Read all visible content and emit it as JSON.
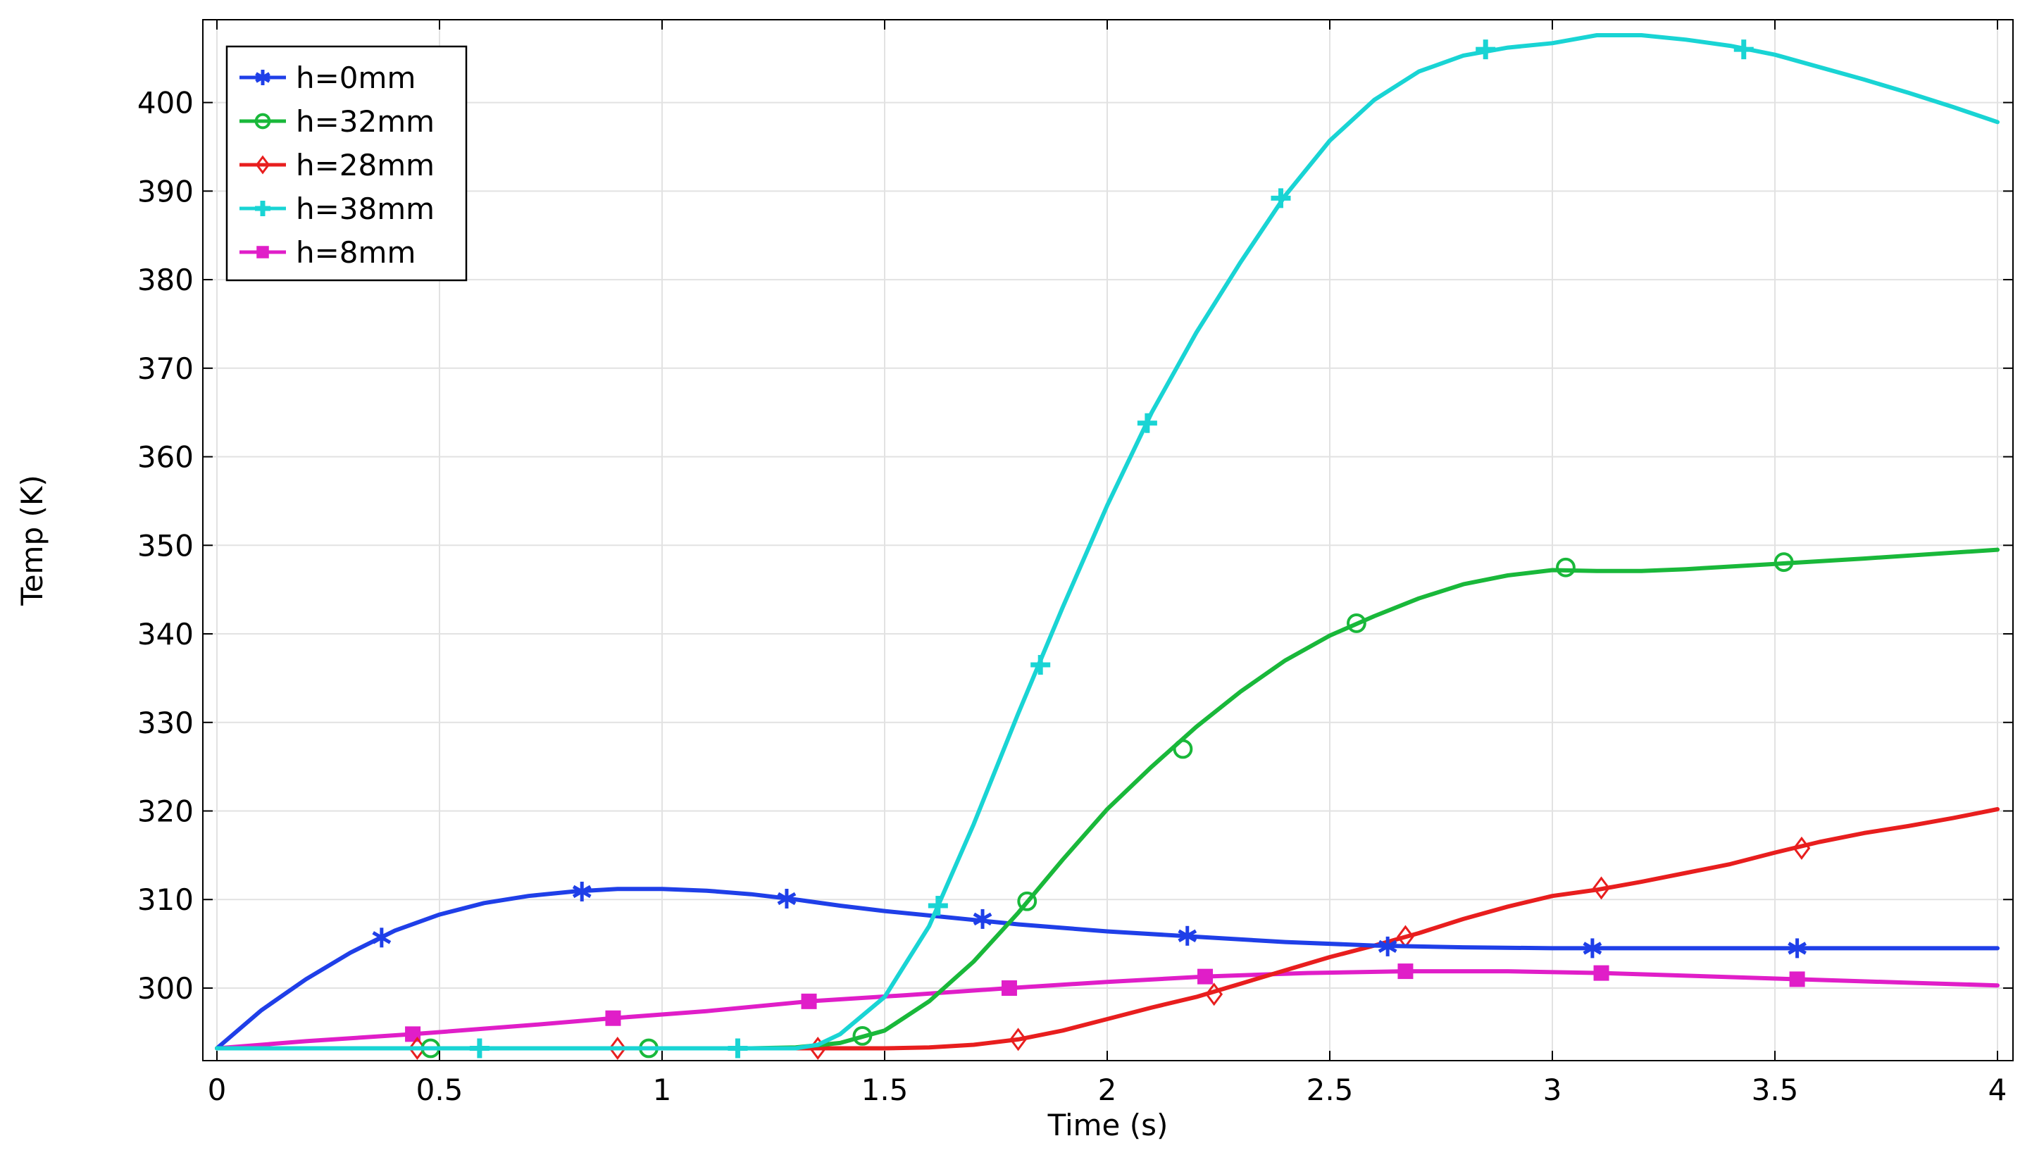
{
  "chart_data": {
    "type": "line",
    "title": "",
    "xlabel": "Time (s)",
    "ylabel": "Temp (K)",
    "xlim": [
      0,
      4
    ],
    "ylim": [
      293,
      408
    ],
    "grid": true,
    "legend_position": "top-left",
    "xticks": [
      0,
      0.5,
      1,
      1.5,
      2,
      2.5,
      3,
      3.5,
      4
    ],
    "xtick_labels": [
      "0",
      "0.5",
      "1",
      "1.5",
      "2",
      "2.5",
      "3",
      "3.5",
      "4"
    ],
    "yticks": [
      300,
      310,
      320,
      330,
      340,
      350,
      360,
      370,
      380,
      390,
      400
    ],
    "ytick_labels": [
      "300",
      "310",
      "320",
      "330",
      "340",
      "350",
      "360",
      "370",
      "380",
      "390",
      "400"
    ],
    "series": [
      {
        "name": "h=0mm",
        "color": "#1f3fe8",
        "marker": "asterisk",
        "points": [
          [
            0,
            293.2
          ],
          [
            0.1,
            297.5
          ],
          [
            0.2,
            301
          ],
          [
            0.3,
            304
          ],
          [
            0.4,
            306.5
          ],
          [
            0.5,
            308.3
          ],
          [
            0.6,
            309.6
          ],
          [
            0.7,
            310.4
          ],
          [
            0.8,
            310.9
          ],
          [
            0.9,
            311.2
          ],
          [
            1.0,
            311.2
          ],
          [
            1.1,
            311
          ],
          [
            1.2,
            310.6
          ],
          [
            1.3,
            310
          ],
          [
            1.4,
            309.3
          ],
          [
            1.5,
            308.7
          ],
          [
            1.6,
            308.2
          ],
          [
            1.7,
            307.7
          ],
          [
            1.8,
            307.2
          ],
          [
            1.9,
            306.8
          ],
          [
            2.0,
            306.4
          ],
          [
            2.2,
            305.8
          ],
          [
            2.4,
            305.2
          ],
          [
            2.6,
            304.8
          ],
          [
            2.8,
            304.6
          ],
          [
            3.0,
            304.5
          ],
          [
            3.2,
            304.5
          ],
          [
            3.5,
            304.5
          ],
          [
            4.0,
            304.5
          ]
        ],
        "markers": [
          [
            0.37,
            305.7
          ],
          [
            0.82,
            310.9
          ],
          [
            1.28,
            310.1
          ],
          [
            1.72,
            307.8
          ],
          [
            2.18,
            305.9
          ],
          [
            2.63,
            304.7
          ],
          [
            3.09,
            304.5
          ],
          [
            3.55,
            304.5
          ]
        ]
      },
      {
        "name": "h=32mm",
        "color": "#19b83a",
        "marker": "circle",
        "points": [
          [
            0,
            293.2
          ],
          [
            1.2,
            293.2
          ],
          [
            1.3,
            293.3
          ],
          [
            1.4,
            293.8
          ],
          [
            1.5,
            295.2
          ],
          [
            1.6,
            298.5
          ],
          [
            1.7,
            303
          ],
          [
            1.8,
            308.5
          ],
          [
            1.9,
            314.5
          ],
          [
            2.0,
            320.2
          ],
          [
            2.1,
            325
          ],
          [
            2.2,
            329.5
          ],
          [
            2.3,
            333.5
          ],
          [
            2.4,
            337
          ],
          [
            2.5,
            339.8
          ],
          [
            2.6,
            342
          ],
          [
            2.7,
            344
          ],
          [
            2.8,
            345.6
          ],
          [
            2.9,
            346.6
          ],
          [
            3.0,
            347.2
          ],
          [
            3.1,
            347.1
          ],
          [
            3.2,
            347.1
          ],
          [
            3.3,
            347.3
          ],
          [
            3.5,
            347.9
          ],
          [
            3.7,
            348.5
          ],
          [
            4.0,
            349.5
          ]
        ],
        "markers": [
          [
            0.48,
            293.2
          ],
          [
            0.97,
            293.2
          ],
          [
            1.45,
            294.6
          ],
          [
            1.82,
            309.8
          ],
          [
            2.17,
            327
          ],
          [
            2.56,
            341.2
          ],
          [
            3.03,
            347.5
          ],
          [
            3.52,
            348.1
          ]
        ]
      },
      {
        "name": "h=28mm",
        "color": "#e81e1e",
        "marker": "diamond",
        "points": [
          [
            0,
            293.2
          ],
          [
            1.3,
            293.2
          ],
          [
            1.5,
            293.2
          ],
          [
            1.6,
            293.3
          ],
          [
            1.7,
            293.6
          ],
          [
            1.8,
            294.2
          ],
          [
            1.9,
            295.2
          ],
          [
            2.0,
            296.5
          ],
          [
            2.1,
            297.8
          ],
          [
            2.2,
            299
          ],
          [
            2.3,
            300.5
          ],
          [
            2.4,
            302
          ],
          [
            2.5,
            303.5
          ],
          [
            2.6,
            304.8
          ],
          [
            2.7,
            306.2
          ],
          [
            2.8,
            307.8
          ],
          [
            2.9,
            309.2
          ],
          [
            3.0,
            310.4
          ],
          [
            3.1,
            311.1
          ],
          [
            3.2,
            312
          ],
          [
            3.3,
            313
          ],
          [
            3.4,
            314
          ],
          [
            3.5,
            315.3
          ],
          [
            3.6,
            316.5
          ],
          [
            3.7,
            317.5
          ],
          [
            3.8,
            318.3
          ],
          [
            3.9,
            319.2
          ],
          [
            4.0,
            320.2
          ]
        ],
        "markers": [
          [
            0.45,
            293.2
          ],
          [
            0.9,
            293.2
          ],
          [
            1.35,
            293.2
          ],
          [
            1.8,
            294.2
          ],
          [
            2.24,
            299.3
          ],
          [
            2.67,
            305.8
          ],
          [
            3.11,
            311.3
          ],
          [
            3.56,
            315.8
          ]
        ]
      },
      {
        "name": "h=38mm",
        "color": "#19d4d4",
        "marker": "plus",
        "points": [
          [
            0,
            293.2
          ],
          [
            1.3,
            293.2
          ],
          [
            1.35,
            293.6
          ],
          [
            1.4,
            294.8
          ],
          [
            1.5,
            299
          ],
          [
            1.6,
            307
          ],
          [
            1.7,
            318.5
          ],
          [
            1.8,
            331
          ],
          [
            1.9,
            343
          ],
          [
            2.0,
            354.5
          ],
          [
            2.1,
            365
          ],
          [
            2.2,
            374
          ],
          [
            2.3,
            382
          ],
          [
            2.4,
            389.5
          ],
          [
            2.5,
            395.7
          ],
          [
            2.6,
            400.3
          ],
          [
            2.7,
            403.5
          ],
          [
            2.8,
            405.3
          ],
          [
            2.9,
            406.2
          ],
          [
            3.0,
            406.7
          ],
          [
            3.1,
            407.6
          ],
          [
            3.2,
            407.6
          ],
          [
            3.3,
            407.1
          ],
          [
            3.4,
            406.4
          ],
          [
            3.5,
            405.4
          ],
          [
            3.6,
            404
          ],
          [
            3.7,
            402.6
          ],
          [
            3.8,
            401.1
          ],
          [
            3.9,
            399.5
          ],
          [
            4.0,
            397.8
          ]
        ],
        "markers": [
          [
            0.59,
            293.2
          ],
          [
            1.17,
            293.2
          ],
          [
            1.62,
            309.3
          ],
          [
            1.85,
            336.5
          ],
          [
            2.09,
            363.8
          ],
          [
            2.39,
            389.2
          ],
          [
            2.85,
            406
          ],
          [
            3.43,
            406
          ]
        ]
      },
      {
        "name": "h=8mm",
        "color": "#e01ec8",
        "marker": "square",
        "points": [
          [
            0,
            293.2
          ],
          [
            0.2,
            294
          ],
          [
            0.44,
            294.8
          ],
          [
            0.7,
            295.8
          ],
          [
            0.89,
            296.6
          ],
          [
            1.1,
            297.4
          ],
          [
            1.33,
            298.5
          ],
          [
            1.55,
            299.2
          ],
          [
            1.78,
            300
          ],
          [
            2.0,
            300.7
          ],
          [
            2.22,
            301.3
          ],
          [
            2.45,
            301.7
          ],
          [
            2.67,
            301.9
          ],
          [
            2.9,
            301.9
          ],
          [
            3.11,
            301.7
          ],
          [
            3.3,
            301.4
          ],
          [
            3.55,
            301
          ],
          [
            3.8,
            300.6
          ],
          [
            4.0,
            300.3
          ]
        ],
        "markers": [
          [
            0.44,
            294.8
          ],
          [
            0.89,
            296.6
          ],
          [
            1.33,
            298.5
          ],
          [
            1.78,
            300
          ],
          [
            2.22,
            301.3
          ],
          [
            2.67,
            301.9
          ],
          [
            3.11,
            301.7
          ],
          [
            3.55,
            301
          ]
        ]
      }
    ]
  }
}
